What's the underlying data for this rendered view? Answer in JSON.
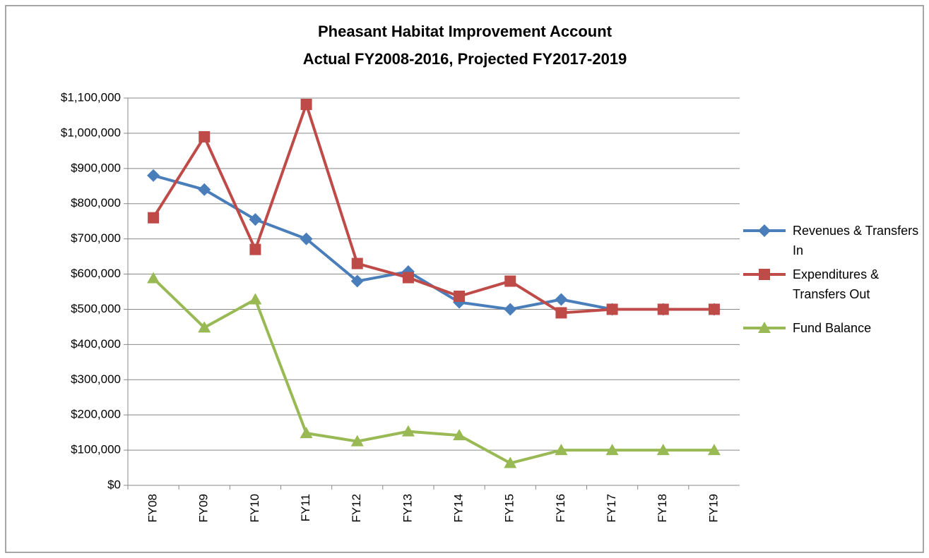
{
  "chart_data": {
    "type": "line",
    "title": "Pheasant Habitat Improvement Account",
    "subtitle": "Actual FY2008-2016, Projected FY2017-2019",
    "categories": [
      "FY08",
      "FY09",
      "FY10",
      "FY11",
      "FY12",
      "FY13",
      "FY14",
      "FY15",
      "FY16",
      "FY17",
      "FY18",
      "FY19"
    ],
    "series": [
      {
        "name": "Revenues & Transfers In",
        "color": "#4a7ebb",
        "marker": "diamond",
        "values": [
          880000,
          840000,
          755000,
          700000,
          580000,
          607000,
          520000,
          500000,
          528000,
          500000,
          500000,
          500000
        ]
      },
      {
        "name": "Expenditures & Transfers Out",
        "color": "#be4b48",
        "marker": "square",
        "values": [
          760000,
          990000,
          670000,
          1082000,
          630000,
          590000,
          537000,
          580000,
          490000,
          500000,
          500000,
          500000
        ]
      },
      {
        "name": "Fund Balance",
        "color": "#98b954",
        "marker": "triangle",
        "values": [
          588000,
          448000,
          528000,
          148000,
          125000,
          153000,
          142000,
          63000,
          100000,
          100000,
          100000,
          100000
        ]
      }
    ],
    "ylim": [
      0,
      1100000
    ],
    "yticks": [
      {
        "value": 0,
        "label": "$0"
      },
      {
        "value": 100000,
        "label": "$100,000"
      },
      {
        "value": 200000,
        "label": "$200,000"
      },
      {
        "value": 300000,
        "label": "$300,000"
      },
      {
        "value": 400000,
        "label": "$400,000"
      },
      {
        "value": 500000,
        "label": "$500,000"
      },
      {
        "value": 600000,
        "label": "$600,000"
      },
      {
        "value": 700000,
        "label": "$700,000"
      },
      {
        "value": 800000,
        "label": "$800,000"
      },
      {
        "value": 900000,
        "label": "$900,000"
      },
      {
        "value": 1000000,
        "label": "$1,000,000"
      },
      {
        "value": 1100000,
        "label": "$1,100,000"
      }
    ],
    "grid": true,
    "legend": "right"
  }
}
